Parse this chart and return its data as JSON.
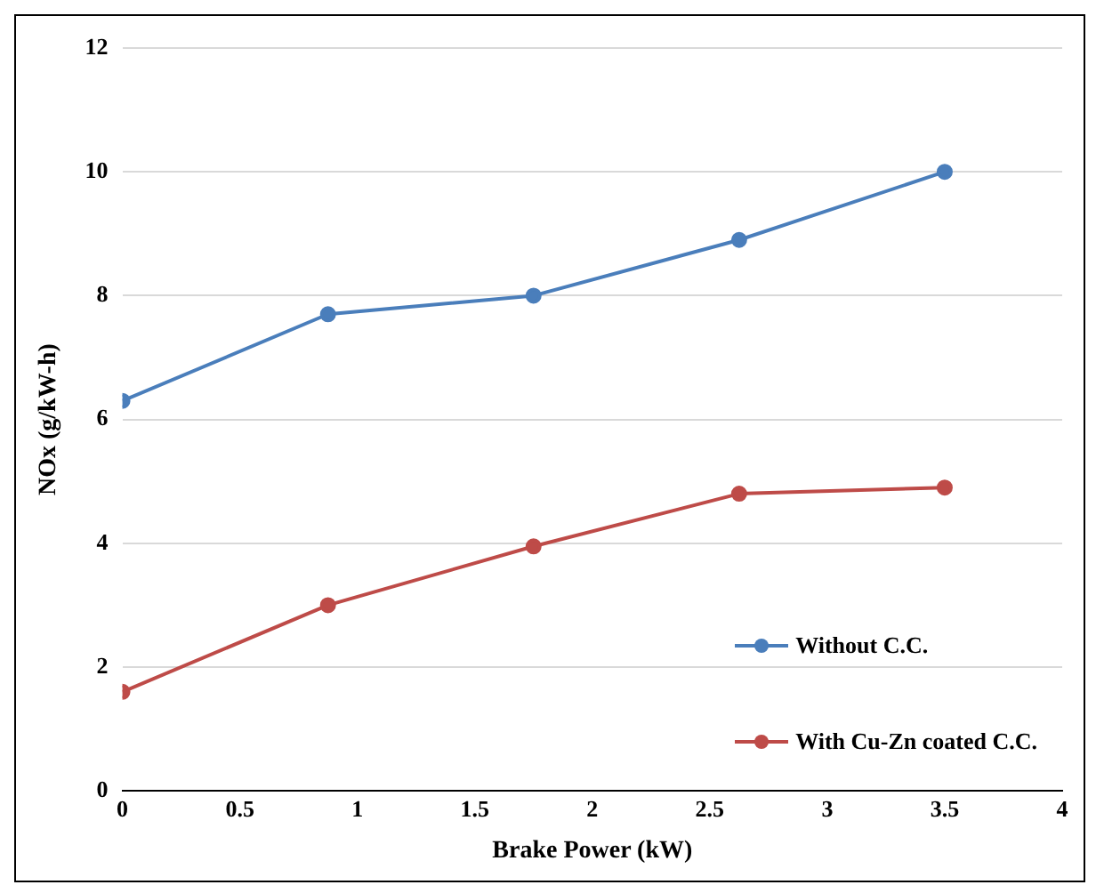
{
  "chart_data": {
    "type": "line",
    "xlabel": "Brake Power (kW)",
    "ylabel": "NOx (g/kW-h)",
    "x": [
      0,
      0.875,
      1.75,
      2.625,
      3.5
    ],
    "series": [
      {
        "name": "Without C.C.",
        "color": "#4a7ebb",
        "values": [
          6.3,
          7.7,
          8.0,
          8.9,
          10.0
        ]
      },
      {
        "name": "With Cu-Zn coated C.C.",
        "color": "#be4b48",
        "values": [
          1.6,
          3.0,
          3.95,
          4.8,
          4.9
        ]
      }
    ],
    "xlim": [
      0,
      4
    ],
    "xticks": [
      0,
      0.5,
      1,
      1.5,
      2,
      2.5,
      3,
      3.5,
      4
    ],
    "ylim": [
      0,
      12
    ],
    "yticks": [
      0,
      2,
      4,
      6,
      8,
      10,
      12
    ],
    "grid": "y",
    "legend": "bottom right",
    "marker": "circle",
    "line_style": "solid"
  }
}
